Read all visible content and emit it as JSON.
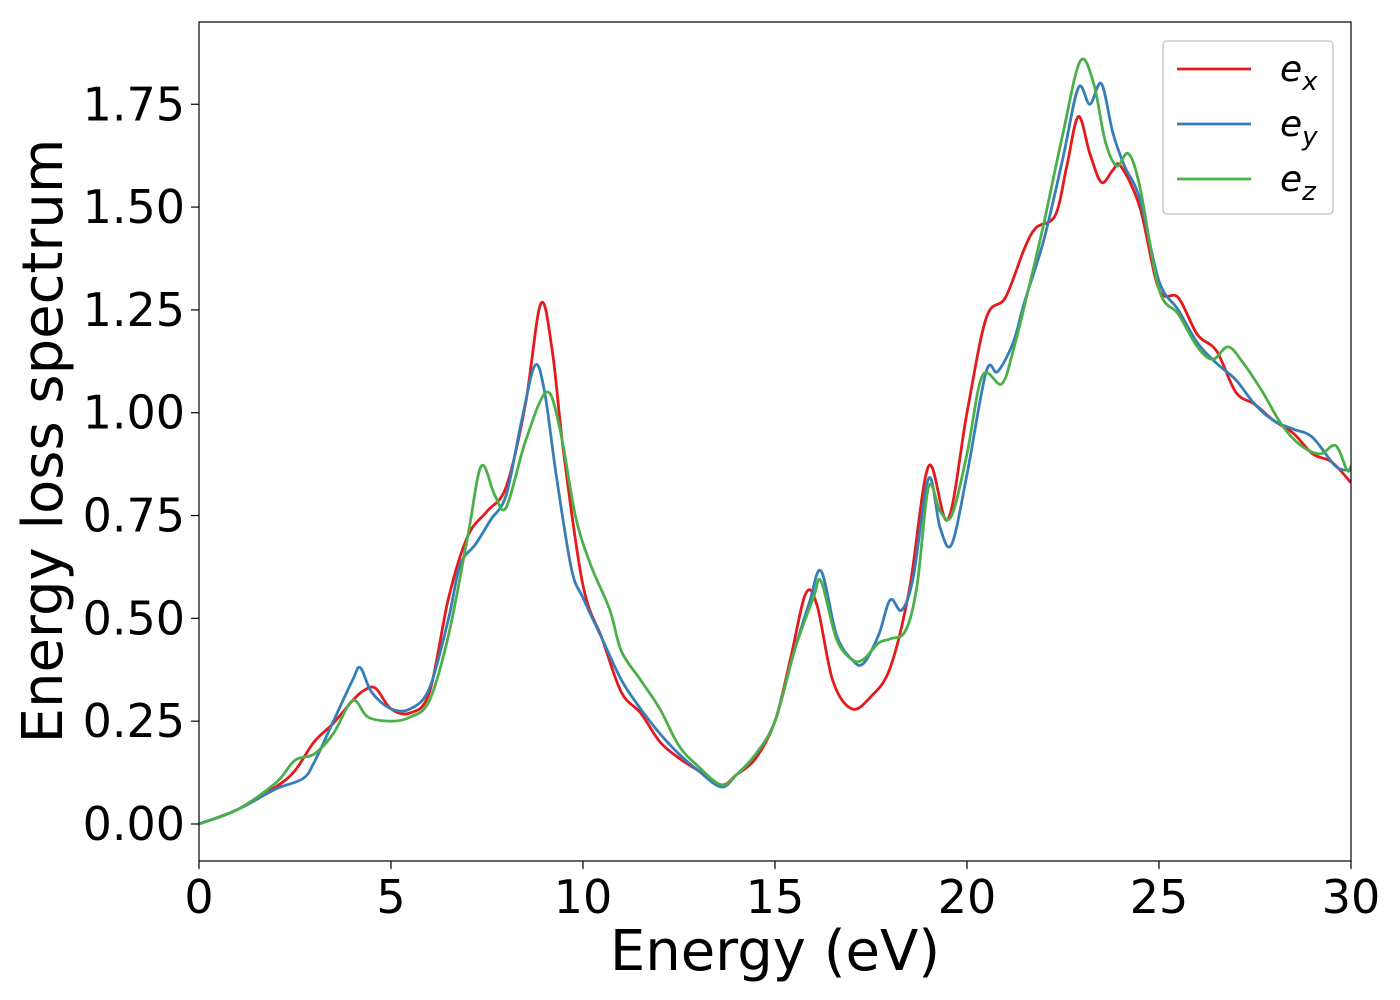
{
  "chart_data": {
    "type": "line",
    "xlabel": "Energy (eV)",
    "ylabel": "Energy loss spectrum",
    "xlim": [
      0,
      30
    ],
    "ylim": [
      -0.09,
      1.95
    ],
    "xticks": [
      0,
      5,
      10,
      15,
      20,
      25,
      30
    ],
    "xtick_labels": [
      "0",
      "5",
      "10",
      "15",
      "20",
      "25",
      "30"
    ],
    "yticks": [
      0,
      0.25,
      0.5,
      0.75,
      1.0,
      1.25,
      1.5,
      1.75
    ],
    "ytick_labels": [
      "0.00",
      "0.25",
      "0.50",
      "0.75",
      "1.00",
      "1.25",
      "1.50",
      "1.75"
    ],
    "grid": false,
    "legend_position": "top-right",
    "series": [
      {
        "name": "e_x",
        "label_base": "e",
        "label_sub": "x",
        "color": "#e41a1c",
        "points": [
          [
            0,
            0
          ],
          [
            1,
            0.035
          ],
          [
            2,
            0.09
          ],
          [
            2.5,
            0.13
          ],
          [
            3,
            0.2
          ],
          [
            3.5,
            0.245
          ],
          [
            4,
            0.3
          ],
          [
            4.3,
            0.325
          ],
          [
            4.6,
            0.33
          ],
          [
            5,
            0.28
          ],
          [
            5.5,
            0.27
          ],
          [
            6,
            0.32
          ],
          [
            6.5,
            0.55
          ],
          [
            7,
            0.7
          ],
          [
            7.5,
            0.76
          ],
          [
            8,
            0.82
          ],
          [
            8.5,
            1.02
          ],
          [
            8.9,
            1.265
          ],
          [
            9.2,
            1.15
          ],
          [
            9.5,
            0.9
          ],
          [
            10,
            0.58
          ],
          [
            10.5,
            0.45
          ],
          [
            11,
            0.32
          ],
          [
            11.5,
            0.27
          ],
          [
            12,
            0.2
          ],
          [
            12.5,
            0.16
          ],
          [
            13,
            0.13
          ],
          [
            13.6,
            0.095
          ],
          [
            14,
            0.12
          ],
          [
            14.5,
            0.16
          ],
          [
            15,
            0.25
          ],
          [
            15.4,
            0.4
          ],
          [
            15.8,
            0.56
          ],
          [
            16.1,
            0.53
          ],
          [
            16.5,
            0.35
          ],
          [
            17,
            0.28
          ],
          [
            17.5,
            0.31
          ],
          [
            18,
            0.38
          ],
          [
            18.5,
            0.57
          ],
          [
            19,
            0.87
          ],
          [
            19.5,
            0.74
          ],
          [
            20,
            1.0
          ],
          [
            20.5,
            1.23
          ],
          [
            21,
            1.28
          ],
          [
            21.5,
            1.4
          ],
          [
            21.8,
            1.45
          ],
          [
            22.3,
            1.48
          ],
          [
            22.6,
            1.6
          ],
          [
            22.9,
            1.72
          ],
          [
            23.2,
            1.63
          ],
          [
            23.5,
            1.56
          ],
          [
            23.8,
            1.59
          ],
          [
            24,
            1.6
          ],
          [
            24.5,
            1.5
          ],
          [
            25,
            1.3
          ],
          [
            25.5,
            1.28
          ],
          [
            26,
            1.19
          ],
          [
            26.5,
            1.15
          ],
          [
            27,
            1.05
          ],
          [
            27.5,
            1.02
          ],
          [
            28,
            0.98
          ],
          [
            28.5,
            0.95
          ],
          [
            29,
            0.9
          ],
          [
            29.5,
            0.88
          ],
          [
            30,
            0.83
          ]
        ]
      },
      {
        "name": "e_y",
        "label_base": "e",
        "label_sub": "y",
        "color": "#377eb8",
        "points": [
          [
            0,
            0
          ],
          [
            1,
            0.035
          ],
          [
            2,
            0.085
          ],
          [
            2.7,
            0.11
          ],
          [
            3,
            0.15
          ],
          [
            3.5,
            0.25
          ],
          [
            4,
            0.35
          ],
          [
            4.2,
            0.38
          ],
          [
            4.5,
            0.32
          ],
          [
            5,
            0.28
          ],
          [
            5.5,
            0.28
          ],
          [
            6,
            0.33
          ],
          [
            6.5,
            0.5
          ],
          [
            6.8,
            0.63
          ],
          [
            7.2,
            0.68
          ],
          [
            7.6,
            0.74
          ],
          [
            8,
            0.8
          ],
          [
            8.4,
            0.98
          ],
          [
            8.75,
            1.115
          ],
          [
            9,
            1.05
          ],
          [
            9.3,
            0.85
          ],
          [
            9.7,
            0.62
          ],
          [
            10,
            0.55
          ],
          [
            10.5,
            0.45
          ],
          [
            11,
            0.35
          ],
          [
            11.5,
            0.28
          ],
          [
            12,
            0.22
          ],
          [
            12.5,
            0.17
          ],
          [
            13,
            0.13
          ],
          [
            13.6,
            0.09
          ],
          [
            14,
            0.12
          ],
          [
            14.5,
            0.17
          ],
          [
            15,
            0.25
          ],
          [
            15.5,
            0.42
          ],
          [
            15.9,
            0.54
          ],
          [
            16.2,
            0.615
          ],
          [
            16.6,
            0.46
          ],
          [
            17,
            0.4
          ],
          [
            17.3,
            0.39
          ],
          [
            17.7,
            0.46
          ],
          [
            18,
            0.545
          ],
          [
            18.3,
            0.52
          ],
          [
            18.6,
            0.6
          ],
          [
            19,
            0.84
          ],
          [
            19.3,
            0.72
          ],
          [
            19.6,
            0.68
          ],
          [
            20,
            0.85
          ],
          [
            20.5,
            1.1
          ],
          [
            20.8,
            1.1
          ],
          [
            21.2,
            1.17
          ],
          [
            21.5,
            1.27
          ],
          [
            22,
            1.42
          ],
          [
            22.5,
            1.62
          ],
          [
            22.9,
            1.79
          ],
          [
            23.2,
            1.75
          ],
          [
            23.5,
            1.8
          ],
          [
            23.8,
            1.68
          ],
          [
            24.1,
            1.6
          ],
          [
            24.5,
            1.52
          ],
          [
            25,
            1.32
          ],
          [
            25.5,
            1.25
          ],
          [
            26,
            1.17
          ],
          [
            26.5,
            1.12
          ],
          [
            27,
            1.08
          ],
          [
            27.5,
            1.02
          ],
          [
            28,
            0.98
          ],
          [
            28.5,
            0.96
          ],
          [
            29,
            0.94
          ],
          [
            29.6,
            0.87
          ],
          [
            30,
            0.86
          ]
        ]
      },
      {
        "name": "e_z",
        "label_base": "e",
        "label_sub": "z",
        "color": "#4daf4a",
        "points": [
          [
            0,
            0
          ],
          [
            1,
            0.035
          ],
          [
            2,
            0.1
          ],
          [
            2.5,
            0.155
          ],
          [
            3,
            0.17
          ],
          [
            3.5,
            0.22
          ],
          [
            4,
            0.3
          ],
          [
            4.4,
            0.26
          ],
          [
            5,
            0.25
          ],
          [
            5.5,
            0.26
          ],
          [
            6,
            0.3
          ],
          [
            6.5,
            0.46
          ],
          [
            7,
            0.7
          ],
          [
            7.35,
            0.87
          ],
          [
            7.7,
            0.8
          ],
          [
            8,
            0.77
          ],
          [
            8.5,
            0.93
          ],
          [
            9.05,
            1.05
          ],
          [
            9.4,
            0.96
          ],
          [
            9.8,
            0.75
          ],
          [
            10.2,
            0.63
          ],
          [
            10.7,
            0.52
          ],
          [
            11,
            0.42
          ],
          [
            11.5,
            0.35
          ],
          [
            12,
            0.28
          ],
          [
            12.5,
            0.19
          ],
          [
            13,
            0.14
          ],
          [
            13.6,
            0.095
          ],
          [
            14,
            0.12
          ],
          [
            14.5,
            0.17
          ],
          [
            15,
            0.25
          ],
          [
            15.5,
            0.42
          ],
          [
            16,
            0.55
          ],
          [
            16.2,
            0.59
          ],
          [
            16.6,
            0.45
          ],
          [
            17,
            0.4
          ],
          [
            17.3,
            0.4
          ],
          [
            17.7,
            0.44
          ],
          [
            18,
            0.45
          ],
          [
            18.4,
            0.47
          ],
          [
            18.7,
            0.58
          ],
          [
            19,
            0.82
          ],
          [
            19.3,
            0.76
          ],
          [
            19.6,
            0.75
          ],
          [
            20,
            0.9
          ],
          [
            20.4,
            1.09
          ],
          [
            20.9,
            1.07
          ],
          [
            21.2,
            1.15
          ],
          [
            21.6,
            1.3
          ],
          [
            22,
            1.46
          ],
          [
            22.5,
            1.68
          ],
          [
            22.95,
            1.855
          ],
          [
            23.3,
            1.8
          ],
          [
            23.6,
            1.66
          ],
          [
            23.9,
            1.6
          ],
          [
            24.2,
            1.63
          ],
          [
            24.5,
            1.55
          ],
          [
            25,
            1.3
          ],
          [
            25.5,
            1.24
          ],
          [
            26,
            1.16
          ],
          [
            26.4,
            1.13
          ],
          [
            26.8,
            1.16
          ],
          [
            27.2,
            1.12
          ],
          [
            27.7,
            1.05
          ],
          [
            28.2,
            0.97
          ],
          [
            28.7,
            0.92
          ],
          [
            29.2,
            0.9
          ],
          [
            29.6,
            0.92
          ],
          [
            29.9,
            0.86
          ],
          [
            30,
            0.87
          ]
        ]
      }
    ]
  }
}
